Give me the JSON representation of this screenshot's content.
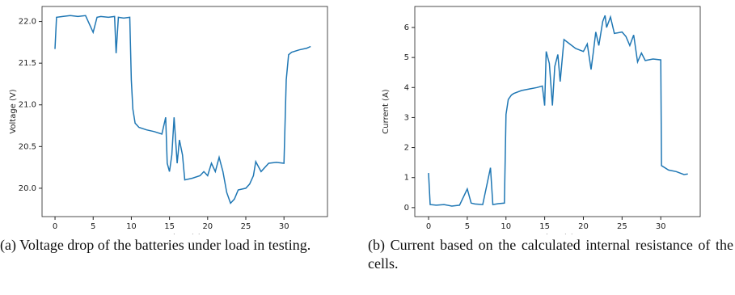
{
  "chart_data": [
    {
      "type": "line",
      "caption": "(a) Voltage drop of the batteries under load in testing.",
      "xlabel": "Time (s)",
      "ylabel": "Voltage (V)",
      "xlim": [
        -1.7,
        35.7
      ],
      "ylim": [
        19.66,
        22.18
      ],
      "xticks": [
        0,
        5,
        10,
        15,
        20,
        25,
        30
      ],
      "yticks": [
        {
          "value": 20,
          "label": "20.0"
        },
        20.5,
        {
          "value": 21,
          "label": "21.0"
        },
        21.5,
        {
          "value": 22,
          "label": "22.0"
        }
      ],
      "series": [
        {
          "color": "#1f77b4",
          "x": [
            0,
            0.2,
            1,
            2,
            3,
            4,
            5,
            5.5,
            6,
            7,
            7.8,
            8,
            8.3,
            9,
            9.8,
            10,
            10.2,
            10.5,
            11,
            12,
            13,
            14,
            14.5,
            14.7,
            15,
            15.3,
            15.6,
            16,
            16.3,
            16.7,
            17,
            18,
            19,
            19.5,
            20,
            20.5,
            21,
            21.5,
            22,
            22.5,
            23,
            23.5,
            24,
            25,
            25.5,
            26,
            26.3,
            26.7,
            27,
            28,
            29,
            30,
            30.3,
            30.6,
            31,
            32,
            33,
            33.5
          ],
          "values": [
            21.67,
            22.05,
            22.06,
            22.07,
            22.06,
            22.07,
            21.87,
            22.05,
            22.06,
            22.05,
            22.06,
            21.62,
            22.05,
            22.04,
            22.05,
            21.3,
            20.95,
            20.78,
            20.73,
            20.7,
            20.68,
            20.65,
            20.85,
            20.3,
            20.2,
            20.4,
            20.85,
            20.3,
            20.58,
            20.4,
            20.1,
            20.12,
            20.15,
            20.2,
            20.15,
            20.3,
            20.2,
            20.37,
            20.2,
            19.95,
            19.82,
            19.87,
            19.98,
            20.0,
            20.05,
            20.15,
            20.32,
            20.25,
            20.2,
            20.3,
            20.31,
            20.3,
            21.3,
            21.6,
            21.63,
            21.66,
            21.68,
            21.7
          ]
        }
      ]
    },
    {
      "type": "line",
      "caption": "(b) Current based on the calculated internal resistance of the cells.",
      "xlabel": "Time (s)",
      "ylabel": "Current (A)",
      "xlim": [
        -1.78,
        35.1
      ],
      "ylim": [
        -0.3,
        6.7
      ],
      "xticks": [
        0,
        5,
        10,
        15,
        20,
        25,
        30
      ],
      "yticks": [
        0,
        1,
        2,
        3,
        4,
        5,
        6
      ],
      "series": [
        {
          "color": "#1f77b4",
          "x": [
            0,
            0.2,
            1,
            2,
            3,
            4,
            5,
            5.5,
            6,
            7,
            8,
            8.3,
            9,
            9.8,
            10,
            10.3,
            10.7,
            11,
            12,
            13,
            14,
            14.7,
            15,
            15.2,
            15.6,
            16,
            16.3,
            16.7,
            17,
            17.5,
            18,
            19,
            20,
            20.5,
            21,
            21.3,
            21.6,
            22,
            22.5,
            22.8,
            23,
            23.5,
            24,
            25,
            25.5,
            26,
            26.5,
            27,
            27.5,
            28,
            29,
            30,
            30.1,
            31,
            32,
            33,
            33.5
          ],
          "values": [
            1.15,
            0.1,
            0.08,
            0.1,
            0.05,
            0.08,
            0.62,
            0.15,
            0.12,
            0.1,
            1.33,
            0.1,
            0.13,
            0.15,
            3.1,
            3.6,
            3.75,
            3.8,
            3.9,
            3.95,
            4.0,
            4.05,
            3.4,
            5.2,
            4.8,
            3.4,
            4.7,
            5.1,
            4.2,
            5.6,
            5.5,
            5.3,
            5.2,
            5.45,
            4.6,
            5.2,
            5.85,
            5.4,
            6.2,
            6.4,
            6.0,
            6.35,
            5.8,
            5.85,
            5.7,
            5.4,
            5.75,
            4.85,
            5.15,
            4.9,
            4.95,
            4.92,
            1.4,
            1.25,
            1.2,
            1.1,
            1.12
          ]
        }
      ]
    }
  ]
}
